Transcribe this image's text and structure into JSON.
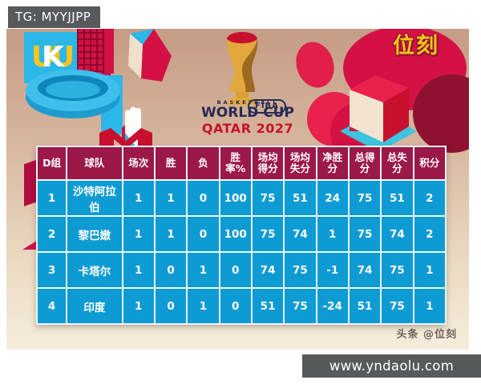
{
  "badge": {
    "label": "TG: MYYJJPP"
  },
  "brand": {
    "corner_logo": "位刻",
    "deco_letters_yellow": "UU",
    "deco_letters_white": "K"
  },
  "event_logo": {
    "fiba": "FIBA",
    "subtitle": "BASKETBALL",
    "title": "WORLD CUP",
    "edition": "QATAR 2027"
  },
  "chart_data": {
    "type": "table",
    "columns": [
      "D组",
      "球队",
      "场次",
      "胜",
      "负",
      "胜率%",
      "场均得分",
      "场均失分",
      "净胜分",
      "总得分",
      "总失分",
      "积分"
    ],
    "rows": [
      [
        "1",
        "沙特阿拉伯",
        "1",
        "1",
        "0",
        "100",
        "75",
        "51",
        "24",
        "75",
        "51",
        "2"
      ],
      [
        "2",
        "黎巴嫩",
        "1",
        "1",
        "0",
        "100",
        "75",
        "74",
        "1",
        "75",
        "74",
        "2"
      ],
      [
        "3",
        "卡塔尔",
        "1",
        "0",
        "1",
        "0",
        "74",
        "75",
        "-1",
        "74",
        "75",
        "1"
      ],
      [
        "4",
        "印度",
        "1",
        "0",
        "1",
        "0",
        "51",
        "75",
        "-24",
        "51",
        "75",
        "1"
      ]
    ]
  },
  "footer": {
    "credit": "头条 @位刻",
    "watermark": "www.yndaolu.com"
  },
  "colors": {
    "header_bg": "#9C1848",
    "row_bg": "#0E9BD4",
    "cell_border": "#EAF5FA",
    "accent_red": "#D31145",
    "accent_dark_red": "#8E1230",
    "accent_cyan": "#2BB7E8",
    "logo_gold": "#F7C51E",
    "navy": "#262B56",
    "bar_gray": "#58595B"
  }
}
